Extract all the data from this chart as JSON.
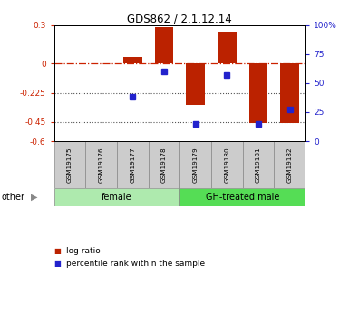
{
  "title": "GDS862 / 2.1.12.14",
  "samples": [
    "GSM19175",
    "GSM19176",
    "GSM19177",
    "GSM19178",
    "GSM19179",
    "GSM19180",
    "GSM19181",
    "GSM19182"
  ],
  "log_ratio": [
    0.0,
    0.0,
    0.055,
    0.285,
    -0.32,
    0.25,
    -0.46,
    -0.46
  ],
  "percentile_rank": [
    null,
    null,
    38,
    60,
    15,
    57,
    15,
    27
  ],
  "ylim_left": [
    -0.6,
    0.3
  ],
  "ylim_right": [
    0,
    100
  ],
  "yticks_left": [
    0.3,
    0,
    -0.225,
    -0.45,
    -0.6
  ],
  "yticks_right": [
    100,
    75,
    50,
    25,
    0
  ],
  "hlines": [
    -0.225,
    -0.45
  ],
  "groups": [
    {
      "label": "female",
      "indices": [
        0,
        1,
        2,
        3
      ],
      "color": "#AEEAAE"
    },
    {
      "label": "GH-treated male",
      "indices": [
        4,
        5,
        6,
        7
      ],
      "color": "#55DD55"
    }
  ],
  "bar_color": "#BB2200",
  "dot_color": "#2222CC",
  "bar_width": 0.6,
  "legend_items": [
    {
      "label": "log ratio",
      "color": "#BB2200"
    },
    {
      "label": "percentile rank within the sample",
      "color": "#2222CC"
    }
  ],
  "ylabel_left_color": "#CC2200",
  "ylabel_right_color": "#2222CC",
  "zero_dash_color": "#CC2200",
  "grid_dotted_color": "#555555",
  "label_bg_color": "#CCCCCC"
}
